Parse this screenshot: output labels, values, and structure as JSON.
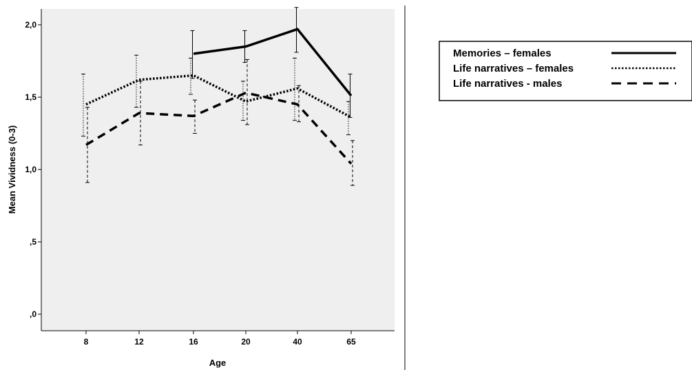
{
  "chart_data": {
    "type": "line",
    "xlabel": "Age",
    "ylabel": "Mean Vividness (0-3)",
    "categories": [
      "8",
      "12",
      "16",
      "20",
      "40",
      "65"
    ],
    "yticks": [
      {
        "value": 0.0,
        "label": ",0"
      },
      {
        "value": 0.5,
        "label": ",5"
      },
      {
        "value": 1.0,
        "label": "1,0"
      },
      {
        "value": 1.5,
        "label": "1,5"
      },
      {
        "value": 2.0,
        "label": "2,0"
      }
    ],
    "ylim": [
      -0.05,
      2.1
    ],
    "grid": false,
    "background": "#efefef",
    "legend_position": "right",
    "series": [
      {
        "name": "Memories – females",
        "style": "solid",
        "values": [
          null,
          null,
          1.8,
          1.85,
          1.97,
          1.51
        ],
        "err_low": [
          null,
          null,
          1.63,
          1.74,
          1.81,
          1.36
        ],
        "err_high": [
          null,
          null,
          1.96,
          1.96,
          2.12,
          1.66
        ]
      },
      {
        "name": "Life narratives – females",
        "style": "dotted",
        "values": [
          1.45,
          1.62,
          1.65,
          1.47,
          1.56,
          1.36
        ],
        "err_low": [
          1.23,
          1.43,
          1.52,
          1.34,
          1.34,
          1.24
        ],
        "err_high": [
          1.66,
          1.79,
          1.77,
          1.61,
          1.77,
          1.47
        ]
      },
      {
        "name": "Life narratives - males",
        "style": "dashed",
        "values": [
          1.17,
          1.39,
          1.37,
          1.53,
          1.45,
          1.04
        ],
        "err_low": [
          0.91,
          1.17,
          1.25,
          1.31,
          1.33,
          0.89
        ],
        "err_high": [
          1.43,
          1.61,
          1.48,
          1.76,
          1.58,
          1.2
        ]
      }
    ]
  }
}
